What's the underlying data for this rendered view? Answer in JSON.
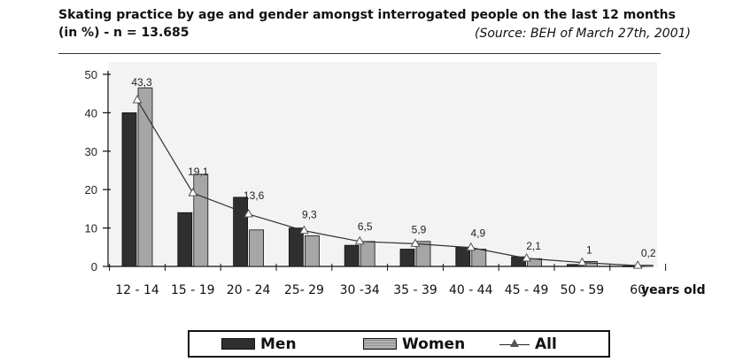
{
  "header": {
    "title": "Skating practice by age and gender amongst interrogated people on the last 12 months",
    "subtitle": "(in %) - n = 13.685",
    "source": "(Source: BEH of March 27th, 2001)"
  },
  "chart_data": {
    "type": "bar",
    "title": "Skating practice by age and gender amongst interrogated people on the last 12 months",
    "subtitle": "(in %) - n = 13.685",
    "xlabel": "years old",
    "ylabel": "",
    "ylim": [
      0,
      50
    ],
    "yticks": [
      0,
      10,
      20,
      30,
      40,
      50
    ],
    "categories": [
      "12 - 14",
      "15 - 19",
      "20 - 24",
      "25- 29",
      "30 -34",
      "35 - 39",
      "40 - 44",
      "45 - 49",
      "50 - 59",
      "60"
    ],
    "series": [
      {
        "name": "Men",
        "kind": "bar",
        "color": "#2f2f2f",
        "values": [
          40,
          14,
          18,
          10,
          5.5,
          4.5,
          5,
          2.5,
          0.5,
          0.1
        ]
      },
      {
        "name": "Women",
        "kind": "bar",
        "color": "#a6a6a6",
        "values": [
          46.5,
          24,
          9.5,
          8,
          6.5,
          6.5,
          4.5,
          2,
          1.3,
          0.3
        ]
      },
      {
        "name": "All",
        "kind": "line",
        "color": "#222222",
        "values": [
          43.3,
          19.1,
          13.6,
          9.3,
          6.5,
          5.9,
          4.9,
          2.1,
          1,
          0.2
        ]
      }
    ],
    "data_labels": [
      "43,3",
      "19,1",
      "13,6",
      "9,3",
      "6,5",
      "5,9",
      "4,9",
      "2,1",
      "1",
      "0,2"
    ],
    "grid": false,
    "legend_position": "bottom"
  },
  "legend": {
    "men": "Men",
    "women": "Women",
    "all": "All"
  }
}
